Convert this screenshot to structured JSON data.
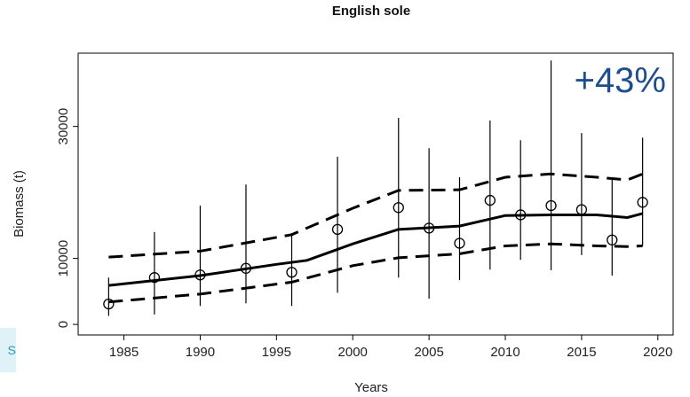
{
  "chart_data": {
    "type": "line",
    "title": "English sole",
    "x_label": "Years",
    "y_label": "Biomass (t)",
    "annotation": "+43%",
    "side_text": "S",
    "xlim": [
      1982,
      2021
    ],
    "ylim": [
      -1600,
      41100
    ],
    "xticks": [
      1985,
      1990,
      1995,
      2000,
      2005,
      2010,
      2015,
      2020
    ],
    "yticks": [
      0,
      10000,
      30000
    ],
    "series": [
      {
        "style": "solid",
        "color": "#000000",
        "x": [
          1984,
          1990,
          1995,
          1997,
          2000,
          2003,
          2007,
          2010,
          2013,
          2016,
          2018,
          2019
        ],
        "values": [
          5900,
          7400,
          9100,
          9700,
          12200,
          14400,
          14900,
          16500,
          16600,
          16600,
          16200,
          16800
        ]
      },
      {
        "style": "dashed",
        "color": "#000000",
        "x": [
          1984,
          1990,
          1996,
          2000,
          2003,
          2007,
          2010,
          2013,
          2016,
          2018,
          2019
        ],
        "values": [
          10200,
          11100,
          13600,
          17600,
          20300,
          20400,
          22300,
          22800,
          22300,
          21900,
          22800
        ]
      },
      {
        "style": "dashed",
        "color": "#000000",
        "x": [
          1984,
          1990,
          1996,
          2000,
          2003,
          2007,
          2010,
          2013,
          2016,
          2018,
          2019
        ],
        "values": [
          3400,
          4600,
          6400,
          8900,
          10100,
          10700,
          11900,
          12200,
          11900,
          11800,
          11900
        ]
      },
      {
        "style": "points",
        "color": "#000000",
        "x": [
          1984,
          1987,
          1990,
          1993,
          1996,
          1999,
          2003,
          2005,
          2007,
          2009,
          2011,
          2013,
          2015,
          2017,
          2019
        ],
        "values": [
          3100,
          7100,
          7500,
          8500,
          7900,
          14400,
          17700,
          14600,
          12300,
          18800,
          16600,
          18000,
          17400,
          12800,
          18500
        ],
        "lower": [
          1300,
          1500,
          2800,
          3200,
          2800,
          4800,
          7100,
          3900,
          6700,
          8300,
          9800,
          8200,
          10500,
          7400,
          11900
        ],
        "upper": [
          7100,
          14000,
          18000,
          21200,
          13800,
          25400,
          31300,
          26700,
          22300,
          30900,
          27900,
          40000,
          29000,
          22000,
          28300
        ]
      }
    ]
  }
}
